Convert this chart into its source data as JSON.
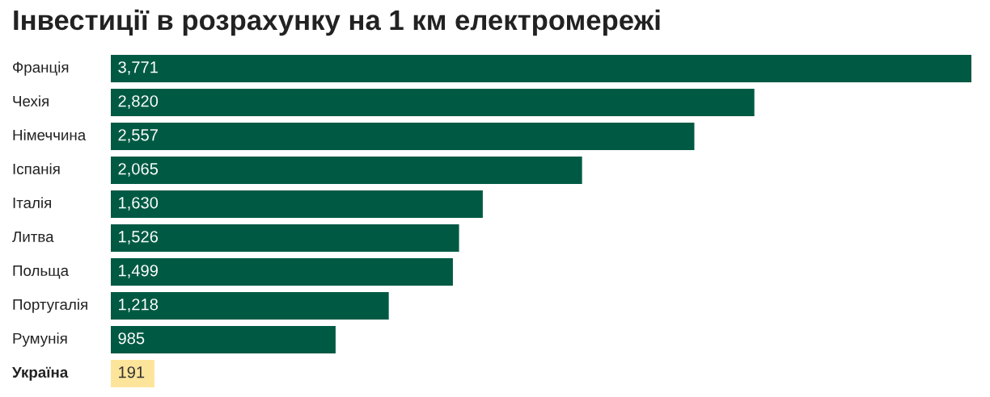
{
  "chart_data": {
    "type": "bar",
    "orientation": "horizontal",
    "title": "Інвестиції в розрахунку на 1 км електромережі",
    "categories": [
      "Франція",
      "Чехія",
      "Німеччина",
      "Іспанія",
      "Італія",
      "Литва",
      "Польща",
      "Португалія",
      "Румунія",
      "Україна"
    ],
    "values": [
      3771,
      2820,
      2557,
      2065,
      1630,
      1526,
      1499,
      1218,
      985,
      191
    ],
    "colors": [
      "#005a43",
      "#005a43",
      "#005a43",
      "#005a43",
      "#005a43",
      "#005a43",
      "#005a43",
      "#005a43",
      "#005a43",
      "#fde49b"
    ],
    "value_labels": [
      "3,771",
      "2,820",
      "2,557",
      "2,065",
      "1,630",
      "1,526",
      "1,499",
      "1,218",
      "985",
      "191"
    ],
    "data_labels": false
  }
}
